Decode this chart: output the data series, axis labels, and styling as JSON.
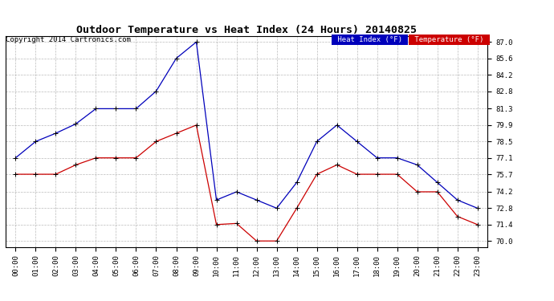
{
  "title": "Outdoor Temperature vs Heat Index (24 Hours) 20140825",
  "copyright": "Copyright 2014 Cartronics.com",
  "heat_index_label": "Heat Index (°F)",
  "temp_label": "Temperature (°F)",
  "heat_index_color": "#0000bb",
  "temp_color": "#cc0000",
  "background_color": "#ffffff",
  "grid_color": "#aaaaaa",
  "yticks": [
    70.0,
    71.4,
    72.8,
    74.2,
    75.7,
    77.1,
    78.5,
    79.9,
    81.3,
    82.8,
    84.2,
    85.6,
    87.0
  ],
  "ylim": [
    69.5,
    87.5
  ],
  "hours": [
    "00:00",
    "01:00",
    "02:00",
    "03:00",
    "04:00",
    "05:00",
    "06:00",
    "07:00",
    "08:00",
    "09:00",
    "10:00",
    "11:00",
    "12:00",
    "13:00",
    "14:00",
    "15:00",
    "16:00",
    "17:00",
    "18:00",
    "19:00",
    "20:00",
    "21:00",
    "22:00",
    "23:00"
  ],
  "heat_index": [
    77.1,
    78.5,
    79.2,
    80.0,
    81.3,
    81.3,
    81.3,
    82.8,
    85.6,
    87.0,
    73.5,
    74.2,
    73.5,
    72.8,
    75.0,
    78.5,
    79.9,
    78.5,
    77.1,
    77.1,
    76.5,
    75.0,
    73.5,
    72.8
  ],
  "temperature": [
    75.7,
    75.7,
    75.7,
    76.5,
    77.1,
    77.1,
    77.1,
    78.5,
    79.2,
    79.9,
    71.4,
    71.5,
    70.0,
    70.0,
    72.8,
    75.7,
    76.5,
    75.7,
    75.7,
    75.7,
    74.2,
    74.2,
    72.1,
    71.4
  ]
}
